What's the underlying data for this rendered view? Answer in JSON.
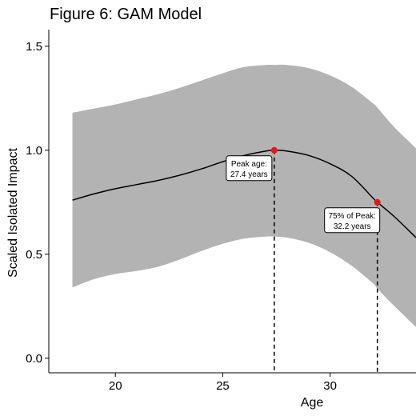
{
  "chart_data": {
    "type": "line",
    "title": "Figure 6: GAM Model",
    "xlabel": "Age",
    "ylabel": "Scaled Isolated Impact",
    "xlim": [
      16.9,
      34.0
    ],
    "ylim": [
      -0.07,
      1.58
    ],
    "x_ticks": [
      20,
      25,
      30
    ],
    "y_ticks": [
      0.0,
      0.5,
      1.0,
      1.5
    ],
    "y_tick_labels": [
      "0.0",
      "0.5",
      "1.0",
      "1.5"
    ],
    "grid": false,
    "colors": {
      "band": "#b3b3b3",
      "line": "#000000",
      "point": "#e8161b"
    },
    "series": [
      {
        "x": [
          18,
          19,
          20,
          21,
          22,
          23,
          24,
          25,
          26,
          27,
          27.4,
          28,
          29,
          30,
          31,
          32,
          32.2,
          33,
          34
        ],
        "fit": [
          0.76,
          0.79,
          0.815,
          0.835,
          0.855,
          0.88,
          0.91,
          0.945,
          0.975,
          0.996,
          1.0,
          0.996,
          0.975,
          0.935,
          0.875,
          0.77,
          0.75,
          0.68,
          0.58
        ],
        "lower": [
          0.34,
          0.38,
          0.405,
          0.42,
          0.44,
          0.475,
          0.515,
          0.55,
          0.575,
          0.585,
          0.585,
          0.58,
          0.555,
          0.51,
          0.445,
          0.36,
          0.335,
          0.25,
          0.15
        ],
        "upper": [
          1.18,
          1.2,
          1.22,
          1.245,
          1.27,
          1.3,
          1.335,
          1.37,
          1.4,
          1.41,
          1.41,
          1.41,
          1.395,
          1.36,
          1.305,
          1.225,
          1.205,
          1.11,
          1.01
        ]
      }
    ],
    "annotations": [
      {
        "x": 27.4,
        "y": 1.0,
        "line1": "Peak age:",
        "line2": "27.4 years"
      },
      {
        "x": 32.2,
        "y": 0.75,
        "line1": "75% of Peak:",
        "line2": "32.2 years"
      }
    ]
  }
}
